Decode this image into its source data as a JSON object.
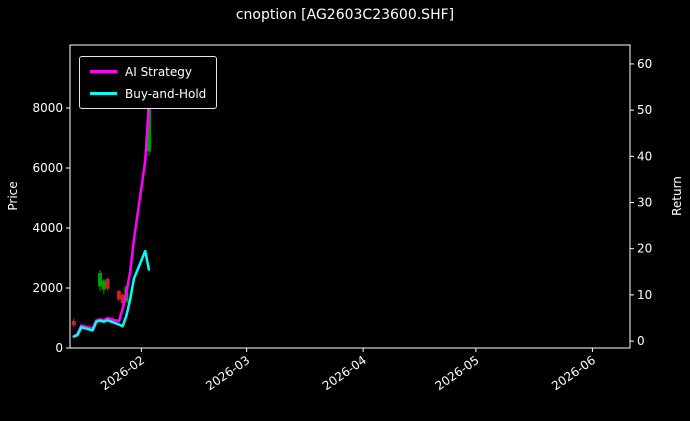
{
  "title": "cnoption [AG2603C23600.SHF]",
  "axes": {
    "left_label": "Price",
    "right_label": "Return"
  },
  "legend": {
    "items": [
      {
        "label": "AI Strategy",
        "color": "#ff00ff"
      },
      {
        "label": "Buy-and-Hold",
        "color": "#00ffff"
      }
    ]
  },
  "colors": {
    "background": "#000000",
    "foreground": "#ffffff",
    "candle_up": "#00a000",
    "candle_down": "#cc2222"
  },
  "chart_data": {
    "type": "line",
    "overlay": "candlestick",
    "title": "cnoption [AG2603C23600.SHF]",
    "grid": false,
    "legend_position": "upper-left",
    "x_axis": {
      "type": "date",
      "domain": [
        "2026-01-13",
        "2026-06-11"
      ],
      "ticks": [
        {
          "date": "2026-02-01",
          "label": "2026-02"
        },
        {
          "date": "2026-03-01",
          "label": "2026-03"
        },
        {
          "date": "2026-04-01",
          "label": "2026-04"
        },
        {
          "date": "2026-05-01",
          "label": "2026-05"
        },
        {
          "date": "2026-06-01",
          "label": "2026-06"
        }
      ]
    },
    "left_axis": {
      "label": "Price",
      "range": [
        0,
        10100
      ],
      "ticks": [
        0,
        2000,
        4000,
        6000,
        8000
      ]
    },
    "right_axis": {
      "label": "Return",
      "range": [
        -1.5,
        64.1
      ],
      "ticks": [
        0,
        10,
        20,
        30,
        40,
        50,
        60
      ]
    },
    "series": [
      {
        "name": "AI Strategy",
        "axis": "right",
        "color": "#ff00ff",
        "dates": [
          "2026-01-14",
          "2026-01-15",
          "2026-01-16",
          "2026-01-19",
          "2026-01-20",
          "2026-01-21",
          "2026-01-22",
          "2026-01-23",
          "2026-01-26",
          "2026-01-27",
          "2026-01-28",
          "2026-01-29",
          "2026-01-30",
          "2026-02-02",
          "2026-02-03"
        ],
        "values": [
          1.0,
          1.6,
          3.4,
          2.7,
          4.5,
          4.7,
          4.5,
          5.0,
          4.3,
          7.0,
          10.5,
          15.0,
          22.0,
          39.0,
          51.5
        ]
      },
      {
        "name": "Buy-and-Hold",
        "axis": "right",
        "color": "#00ffff",
        "dates": [
          "2026-01-14",
          "2026-01-15",
          "2026-01-16",
          "2026-01-19",
          "2026-01-20",
          "2026-01-21",
          "2026-01-22",
          "2026-01-23",
          "2026-01-26",
          "2026-01-27",
          "2026-01-28",
          "2026-01-29",
          "2026-01-30",
          "2026-02-02",
          "2026-02-03"
        ],
        "values": [
          1.0,
          1.3,
          3.0,
          2.3,
          4.2,
          4.4,
          4.2,
          4.5,
          3.6,
          3.2,
          5.5,
          9.0,
          13.5,
          19.5,
          15.5
        ]
      }
    ],
    "candles": [
      {
        "date": "2026-01-14",
        "open": 900,
        "high": 980,
        "low": 700,
        "close": 760
      },
      {
        "date": "2026-01-21",
        "open": 2050,
        "high": 2600,
        "low": 1900,
        "close": 2500
      },
      {
        "date": "2026-01-22",
        "open": 1950,
        "high": 2300,
        "low": 1800,
        "close": 2250
      },
      {
        "date": "2026-01-23",
        "open": 2300,
        "high": 2350,
        "low": 1900,
        "close": 1980
      },
      {
        "date": "2026-01-26",
        "open": 1900,
        "high": 1950,
        "low": 1550,
        "close": 1620
      },
      {
        "date": "2026-01-27",
        "open": 1780,
        "high": 1820,
        "low": 1430,
        "close": 1500
      },
      {
        "date": "2026-01-28",
        "open": 1550,
        "high": 2100,
        "low": 1500,
        "close": 2050
      },
      {
        "date": "2026-02-03",
        "open": 6550,
        "high": 8450,
        "low": 6400,
        "close": 8350
      }
    ]
  }
}
